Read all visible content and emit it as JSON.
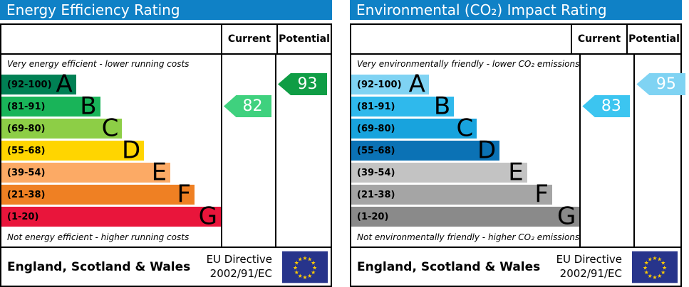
{
  "colors": {
    "header_bar": "#0f81c6",
    "flag_blue": "#27348b",
    "flag_star": "#ffcc00"
  },
  "panels": [
    {
      "title": "Energy Efficiency Rating",
      "columns": {
        "current": "Current",
        "potential": "Potential"
      },
      "caption_top": "Very energy efficient - lower running costs",
      "caption_bottom": "Not energy efficient - higher running costs",
      "bands": [
        {
          "range": "(92-100)",
          "letter": "A",
          "color": "#008054",
          "width": 34
        },
        {
          "range": "(81-91)",
          "letter": "B",
          "color": "#19b459",
          "width": 45
        },
        {
          "range": "(69-80)",
          "letter": "C",
          "color": "#8dce46",
          "width": 55
        },
        {
          "range": "(55-68)",
          "letter": "D",
          "color": "#ffd500",
          "width": 65
        },
        {
          "range": "(39-54)",
          "letter": "E",
          "color": "#fcaa65",
          "width": 77
        },
        {
          "range": "(21-38)",
          "letter": "F",
          "color": "#ef8023",
          "width": 88
        },
        {
          "range": "(1-20)",
          "letter": "G",
          "color": "#e9153b",
          "width": 100
        }
      ],
      "current": {
        "value": "82",
        "color": "#3fd17e",
        "row": 1
      },
      "potential": {
        "value": "93",
        "color": "#0f9d45",
        "row": 0
      },
      "footer": {
        "region": "England, Scotland & Wales",
        "directive_line1": "EU Directive",
        "directive_line2": "2002/91/EC"
      }
    },
    {
      "title": "Environmental (CO₂) Impact Rating",
      "columns": {
        "current": "Current",
        "potential": "Potential"
      },
      "caption_top": "Very environmentally friendly - lower CO₂ emissions",
      "caption_bottom": "Not environmentally friendly - higher CO₂ emissions",
      "bands": [
        {
          "range": "(92-100)",
          "letter": "A",
          "color": "#7fd3f3",
          "width": 34
        },
        {
          "range": "(81-91)",
          "letter": "B",
          "color": "#2fb9ec",
          "width": 45
        },
        {
          "range": "(69-80)",
          "letter": "C",
          "color": "#18a3dd",
          "width": 55
        },
        {
          "range": "(55-68)",
          "letter": "D",
          "color": "#0b72b5",
          "width": 65
        },
        {
          "range": "(39-54)",
          "letter": "E",
          "color": "#c3c3c3",
          "width": 77
        },
        {
          "range": "(21-38)",
          "letter": "F",
          "color": "#a5a5a5",
          "width": 88
        },
        {
          "range": "(1-20)",
          "letter": "G",
          "color": "#8a8a8a",
          "width": 100
        }
      ],
      "current": {
        "value": "83",
        "color": "#3cc5f0",
        "row": 1
      },
      "potential": {
        "value": "95",
        "color": "#7fd3f3",
        "row": 0
      },
      "footer": {
        "region": "England, Scotland & Wales",
        "directive_line1": "EU Directive",
        "directive_line2": "2002/91/EC"
      }
    }
  ],
  "chart_data": [
    {
      "type": "bar",
      "title": "Energy Efficiency Rating",
      "orientation": "horizontal",
      "categories": [
        "A (92-100)",
        "B (81-91)",
        "C (69-80)",
        "D (55-68)",
        "E (39-54)",
        "F (21-38)",
        "G (1-20)"
      ],
      "values": [
        34,
        45,
        55,
        65,
        77,
        88,
        100
      ],
      "value_note": "bar lengths are schematic band widths (% of column)",
      "annotations": {
        "current": 82,
        "current_band": "B",
        "potential": 93,
        "potential_band": "A"
      },
      "top_label": "Very energy efficient - lower running costs",
      "bottom_label": "Not energy efficient - higher running costs",
      "footer": "England, Scotland & Wales — EU Directive 2002/91/EC"
    },
    {
      "type": "bar",
      "title": "Environmental (CO₂) Impact Rating",
      "orientation": "horizontal",
      "categories": [
        "A (92-100)",
        "B (81-91)",
        "C (69-80)",
        "D (55-68)",
        "E (39-54)",
        "F (21-38)",
        "G (1-20)"
      ],
      "values": [
        34,
        45,
        55,
        65,
        77,
        88,
        100
      ],
      "value_note": "bar lengths are schematic band widths (% of column)",
      "annotations": {
        "current": 83,
        "current_band": "B",
        "potential": 95,
        "potential_band": "A"
      },
      "top_label": "Very environmentally friendly - lower CO₂ emissions",
      "bottom_label": "Not environmentally friendly - higher CO₂ emissions",
      "footer": "England, Scotland & Wales — EU Directive 2002/91/EC"
    }
  ]
}
